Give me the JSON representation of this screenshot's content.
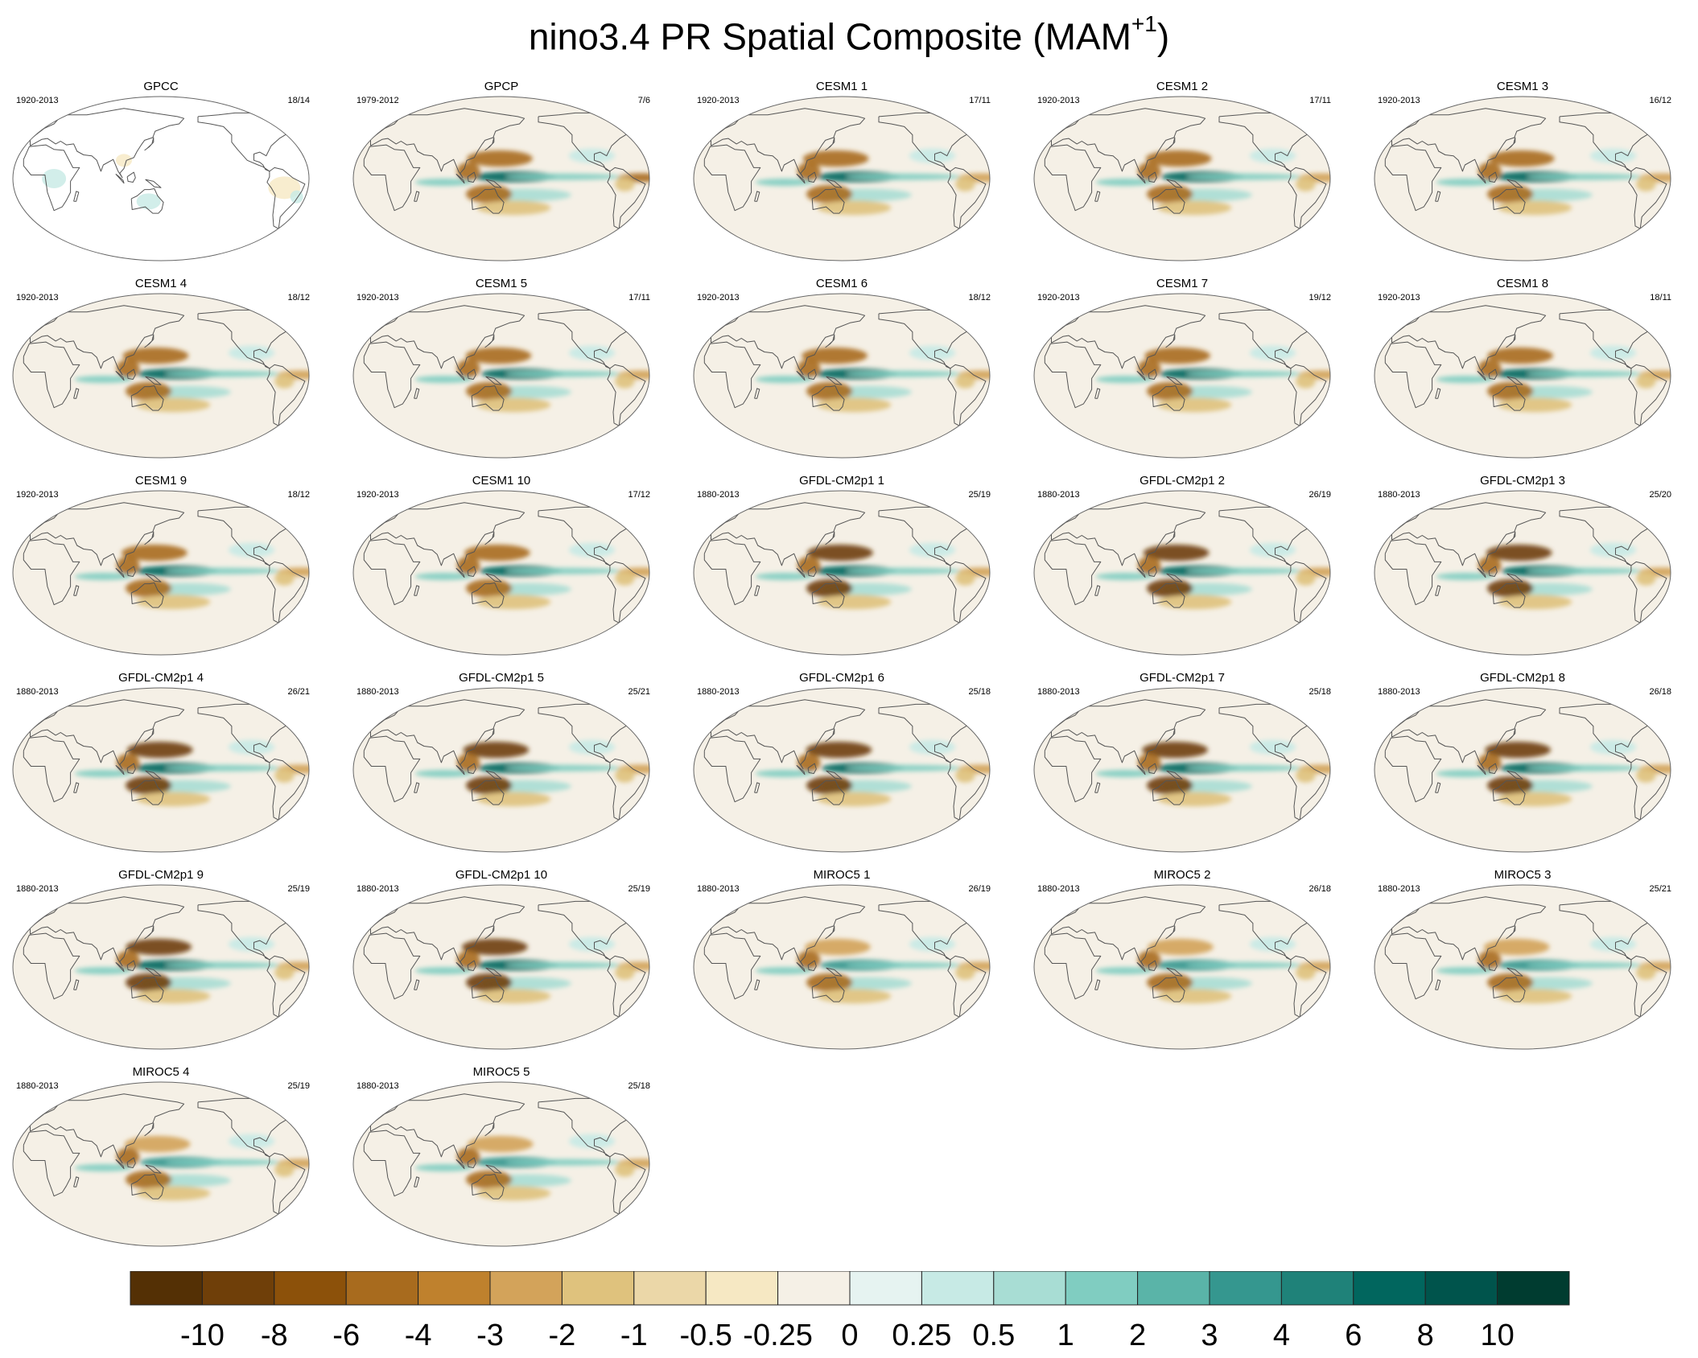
{
  "title": {
    "main": "nino3.4 PR Spatial Composite (MAM",
    "superscript": "+1",
    "close": ")"
  },
  "panels": [
    {
      "name": "GPCC",
      "years": "1920-2013",
      "count": "18/14",
      "kind": "obs-land"
    },
    {
      "name": "GPCP",
      "years": "1979-2012",
      "count": "7/6",
      "kind": "obs"
    },
    {
      "name": "CESM1 1",
      "years": "1920-2013",
      "count": "17/11",
      "kind": "cesm"
    },
    {
      "name": "CESM1 2",
      "years": "1920-2013",
      "count": "17/11",
      "kind": "cesm"
    },
    {
      "name": "CESM1 3",
      "years": "1920-2013",
      "count": "16/12",
      "kind": "cesm"
    },
    {
      "name": "CESM1 4",
      "years": "1920-2013",
      "count": "18/12",
      "kind": "cesm"
    },
    {
      "name": "CESM1 5",
      "years": "1920-2013",
      "count": "17/11",
      "kind": "cesm"
    },
    {
      "name": "CESM1 6",
      "years": "1920-2013",
      "count": "18/12",
      "kind": "cesm"
    },
    {
      "name": "CESM1 7",
      "years": "1920-2013",
      "count": "19/12",
      "kind": "cesm"
    },
    {
      "name": "CESM1 8",
      "years": "1920-2013",
      "count": "18/11",
      "kind": "cesm"
    },
    {
      "name": "CESM1 9",
      "years": "1920-2013",
      "count": "18/12",
      "kind": "cesm"
    },
    {
      "name": "CESM1 10",
      "years": "1920-2013",
      "count": "17/12",
      "kind": "cesm"
    },
    {
      "name": "GFDL-CM2p1 1",
      "years": "1880-2013",
      "count": "25/19",
      "kind": "gfdl"
    },
    {
      "name": "GFDL-CM2p1 2",
      "years": "1880-2013",
      "count": "26/19",
      "kind": "gfdl"
    },
    {
      "name": "GFDL-CM2p1 3",
      "years": "1880-2013",
      "count": "25/20",
      "kind": "gfdl"
    },
    {
      "name": "GFDL-CM2p1 4",
      "years": "1880-2013",
      "count": "26/21",
      "kind": "gfdl"
    },
    {
      "name": "GFDL-CM2p1 5",
      "years": "1880-2013",
      "count": "25/21",
      "kind": "gfdl"
    },
    {
      "name": "GFDL-CM2p1 6",
      "years": "1880-2013",
      "count": "25/18",
      "kind": "gfdl"
    },
    {
      "name": "GFDL-CM2p1 7",
      "years": "1880-2013",
      "count": "25/18",
      "kind": "gfdl"
    },
    {
      "name": "GFDL-CM2p1 8",
      "years": "1880-2013",
      "count": "26/18",
      "kind": "gfdl"
    },
    {
      "name": "GFDL-CM2p1 9",
      "years": "1880-2013",
      "count": "25/19",
      "kind": "gfdl"
    },
    {
      "name": "GFDL-CM2p1 10",
      "years": "1880-2013",
      "count": "25/19",
      "kind": "gfdl"
    },
    {
      "name": "MIROC5 1",
      "years": "1880-2013",
      "count": "26/19",
      "kind": "miroc"
    },
    {
      "name": "MIROC5 2",
      "years": "1880-2013",
      "count": "26/18",
      "kind": "miroc"
    },
    {
      "name": "MIROC5 3",
      "years": "1880-2013",
      "count": "25/21",
      "kind": "miroc"
    },
    {
      "name": "MIROC5 4",
      "years": "1880-2013",
      "count": "25/19",
      "kind": "miroc"
    },
    {
      "name": "MIROC5 5",
      "years": "1880-2013",
      "count": "25/18",
      "kind": "miroc"
    }
  ],
  "chart_data": {
    "type": "heatmap",
    "projection": "Robinson (Pacific-centered)",
    "panel_grid": {
      "columns": 5,
      "rows": 6
    },
    "colorbar": {
      "orientation": "horizontal",
      "position": "bottom",
      "levels": [
        "-10",
        "-8",
        "-6",
        "-4",
        "-3",
        "-2",
        "-1",
        "-0.5",
        "-0.25",
        "0",
        "0.25",
        "0.5",
        "1",
        "2",
        "3",
        "4",
        "6",
        "8",
        "10"
      ],
      "colors": [
        "#543005",
        "#6f3f09",
        "#8c510a",
        "#a86b1e",
        "#bf812d",
        "#d3a35a",
        "#dfc27d",
        "#ebd7a8",
        "#f6e8c3",
        "#f5f0e6",
        "#e6f3f1",
        "#c7eae5",
        "#a8ddd4",
        "#80cdc1",
        "#5ab4a8",
        "#35978f",
        "#1f8279",
        "#01665e",
        "#00544c",
        "#003c30"
      ]
    },
    "colors": {
      "dry": "#8c510a",
      "wet": "#01665e",
      "neutral": "#f5f0e6",
      "coast": "#555555"
    }
  }
}
